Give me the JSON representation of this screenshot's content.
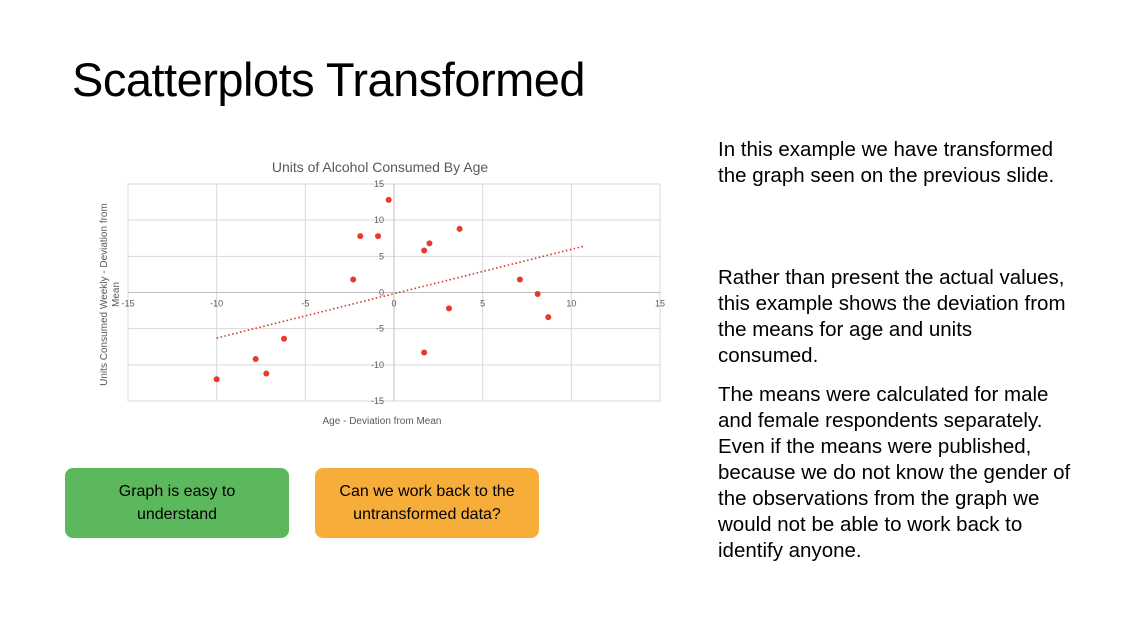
{
  "slide": {
    "title": "Scatterplots Transformed",
    "paragraphs": [
      "In this example we have transformed the graph seen on the previous slide.",
      "Rather than present the actual values, this example shows the deviation from the means for age and units consumed.",
      "The means were calculated for male and female respondents separately. Even if the means were published, because we do not know the gender of the observations from the graph we would not be able to work back to identify anyone."
    ],
    "callouts": {
      "left": "Graph is easy to understand",
      "right": "Can we work back to the untransformed data?"
    },
    "colors": {
      "left_callout": "#5cb85c",
      "right_callout": "#f7ad3a",
      "points": "#e8392e",
      "trendline": "#d9342b"
    }
  },
  "chart_data": {
    "type": "scatter",
    "title": "Units of Alcohol Consumed By Age",
    "xlabel": "Age - Deviation from Mean",
    "ylabel": "Units Consumed Weekly - Deviation from Mean",
    "xlim": [
      -15,
      15
    ],
    "ylim": [
      -15,
      15
    ],
    "x_ticks": [
      -15,
      -10,
      -5,
      0,
      5,
      10,
      15
    ],
    "y_ticks": [
      -15,
      -10,
      -5,
      0,
      5,
      10,
      15
    ],
    "grid": true,
    "legend": "none",
    "points": [
      {
        "x": -10,
        "y": -12
      },
      {
        "x": -7.8,
        "y": -9.2
      },
      {
        "x": -7.2,
        "y": -11.2
      },
      {
        "x": -6.2,
        "y": -6.4
      },
      {
        "x": -2.3,
        "y": 1.8
      },
      {
        "x": -1.9,
        "y": 7.8
      },
      {
        "x": -0.9,
        "y": 7.8
      },
      {
        "x": -0.3,
        "y": 12.8
      },
      {
        "x": 1.7,
        "y": 5.8
      },
      {
        "x": 2.0,
        "y": 6.8
      },
      {
        "x": 1.7,
        "y": -8.3
      },
      {
        "x": 3.1,
        "y": -2.2
      },
      {
        "x": 3.7,
        "y": 8.8
      },
      {
        "x": 7.1,
        "y": 1.8
      },
      {
        "x": 8.1,
        "y": -0.2
      },
      {
        "x": 8.7,
        "y": -3.4
      }
    ],
    "trendline": {
      "style": "dotted",
      "x": [
        -10,
        10.7
      ],
      "y": [
        -6.3,
        6.4
      ]
    }
  }
}
